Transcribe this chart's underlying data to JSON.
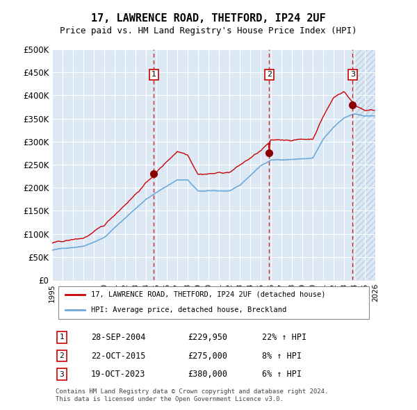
{
  "title": "17, LAWRENCE ROAD, THETFORD, IP24 2UF",
  "subtitle": "Price paid vs. HM Land Registry's House Price Index (HPI)",
  "ylabel": "",
  "xlabel": "",
  "ylim": [
    0,
    500000
  ],
  "yticks": [
    0,
    50000,
    100000,
    150000,
    200000,
    250000,
    300000,
    350000,
    400000,
    450000,
    500000
  ],
  "ytick_labels": [
    "£0",
    "£50K",
    "£100K",
    "£150K",
    "£200K",
    "£250K",
    "£300K",
    "£350K",
    "£400K",
    "£450K",
    "£500K"
  ],
  "hpi_color": "#6ea8d8",
  "price_color": "#cc0000",
  "sale_color": "#8b0000",
  "sale_marker_color": "#8b0000",
  "dashed_color": "#cc0000",
  "background_chart": "#dce9f5",
  "background_hatch": "#dce9f5",
  "grid_color": "#ffffff",
  "sale_dates": [
    "2004-09-28",
    "2015-10-22",
    "2023-10-19"
  ],
  "sale_prices": [
    229950,
    275000,
    380000
  ],
  "sale_labels": [
    "1",
    "2",
    "3"
  ],
  "sale_pct": [
    "22%",
    "8%",
    "6%"
  ],
  "legend_label_price": "17, LAWRENCE ROAD, THETFORD, IP24 2UF (detached house)",
  "legend_label_hpi": "HPI: Average price, detached house, Breckland",
  "footer": "Contains HM Land Registry data © Crown copyright and database right 2024.\nThis data is licensed under the Open Government Licence v3.0.",
  "table_rows": [
    [
      "1",
      "28-SEP-2004",
      "£229,950",
      "22% ↑ HPI"
    ],
    [
      "2",
      "22-OCT-2015",
      "£275,000",
      "8% ↑ HPI"
    ],
    [
      "3",
      "19-OCT-2023",
      "£380,000",
      "6% ↑ HPI"
    ]
  ]
}
